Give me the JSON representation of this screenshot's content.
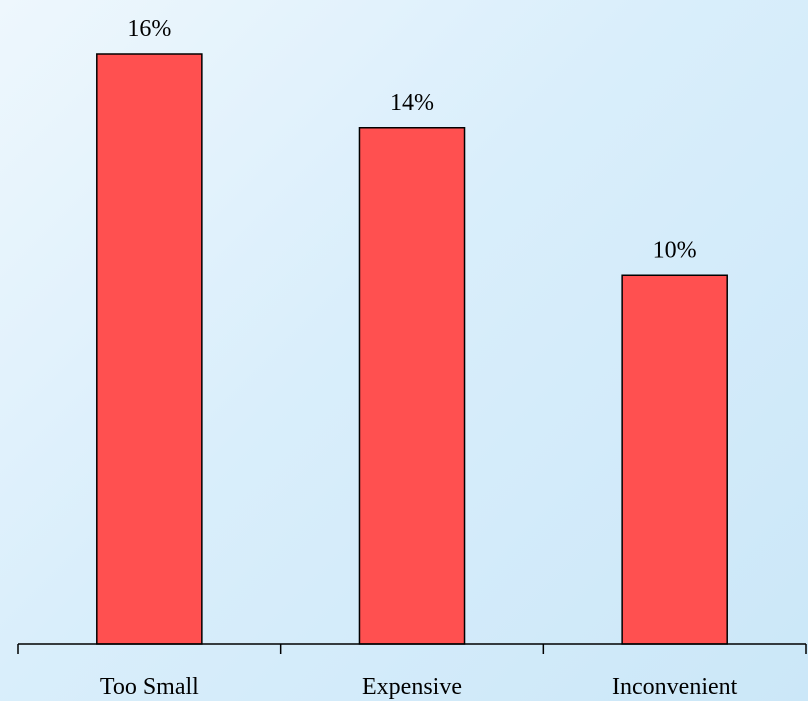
{
  "chart_data": {
    "type": "bar",
    "categories": [
      "Too Small",
      "Expensive",
      "Inconvenient"
    ],
    "values": [
      16,
      14,
      10
    ],
    "value_labels": [
      "16%",
      "14%",
      "10%"
    ],
    "title": "",
    "xlabel": "",
    "ylabel": "",
    "ylim": [
      0,
      16
    ],
    "grid": false,
    "legend": "none",
    "colors": {
      "bar": "#ff5050",
      "outline": "#000000"
    }
  }
}
